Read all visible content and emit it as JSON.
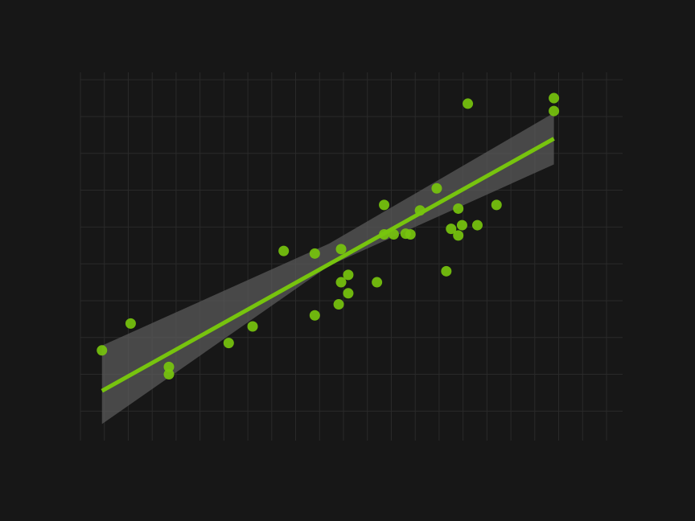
{
  "chart_data": {
    "type": "scatter",
    "title": "",
    "xlabel": "",
    "ylabel": "",
    "xlim": [
      0,
      11
    ],
    "ylim": [
      0,
      10
    ],
    "grid": true,
    "x_gridlines": [
      0,
      0.5,
      1,
      1.5,
      2,
      2.5,
      3,
      3.5,
      4,
      4.5,
      5,
      5.5,
      6,
      6.5,
      7,
      7.5,
      8,
      8.5,
      9,
      9.5,
      10,
      10.5,
      11
    ],
    "y_gridlines": [
      0.8,
      1.8,
      2.8,
      3.8,
      4.8,
      5.8,
      6.8,
      7.8,
      8.8,
      9.8
    ],
    "colors": {
      "background": "#171717",
      "grid": "#2a2a2a",
      "points": "#77c40e",
      "line": "#77c40e",
      "band": "#5a5a5a"
    },
    "points": [
      {
        "x": 0.45,
        "y": 2.45
      },
      {
        "x": 1.05,
        "y": 3.18
      },
      {
        "x": 1.85,
        "y": 2.0
      },
      {
        "x": 1.85,
        "y": 1.8
      },
      {
        "x": 3.1,
        "y": 2.65
      },
      {
        "x": 3.6,
        "y": 3.1
      },
      {
        "x": 4.25,
        "y": 5.15
      },
      {
        "x": 4.9,
        "y": 5.08
      },
      {
        "x": 4.9,
        "y": 3.4
      },
      {
        "x": 5.45,
        "y": 5.2
      },
      {
        "x": 5.45,
        "y": 4.3
      },
      {
        "x": 5.4,
        "y": 3.7
      },
      {
        "x": 5.6,
        "y": 4.5
      },
      {
        "x": 5.6,
        "y": 4.0
      },
      {
        "x": 6.2,
        "y": 4.3
      },
      {
        "x": 6.35,
        "y": 6.4
      },
      {
        "x": 6.35,
        "y": 5.6
      },
      {
        "x": 6.55,
        "y": 5.6
      },
      {
        "x": 6.8,
        "y": 5.62
      },
      {
        "x": 6.9,
        "y": 5.6
      },
      {
        "x": 7.1,
        "y": 6.25
      },
      {
        "x": 7.45,
        "y": 6.85
      },
      {
        "x": 7.65,
        "y": 4.6
      },
      {
        "x": 7.75,
        "y": 5.75
      },
      {
        "x": 7.9,
        "y": 5.57
      },
      {
        "x": 7.9,
        "y": 6.3
      },
      {
        "x": 7.98,
        "y": 5.85
      },
      {
        "x": 8.1,
        "y": 9.15
      },
      {
        "x": 8.3,
        "y": 5.85
      },
      {
        "x": 8.7,
        "y": 6.4
      },
      {
        "x": 9.9,
        "y": 9.3
      },
      {
        "x": 9.9,
        "y": 8.95
      }
    ],
    "fit": {
      "x": [
        0.45,
        9.9
      ],
      "y": [
        1.35,
        8.2
      ]
    },
    "confidence_band": {
      "x": [
        0.45,
        5.2,
        9.9
      ],
      "upper": [
        2.58,
        5.35,
        8.9
      ],
      "lower": [
        0.45,
        4.75,
        7.5
      ]
    }
  }
}
